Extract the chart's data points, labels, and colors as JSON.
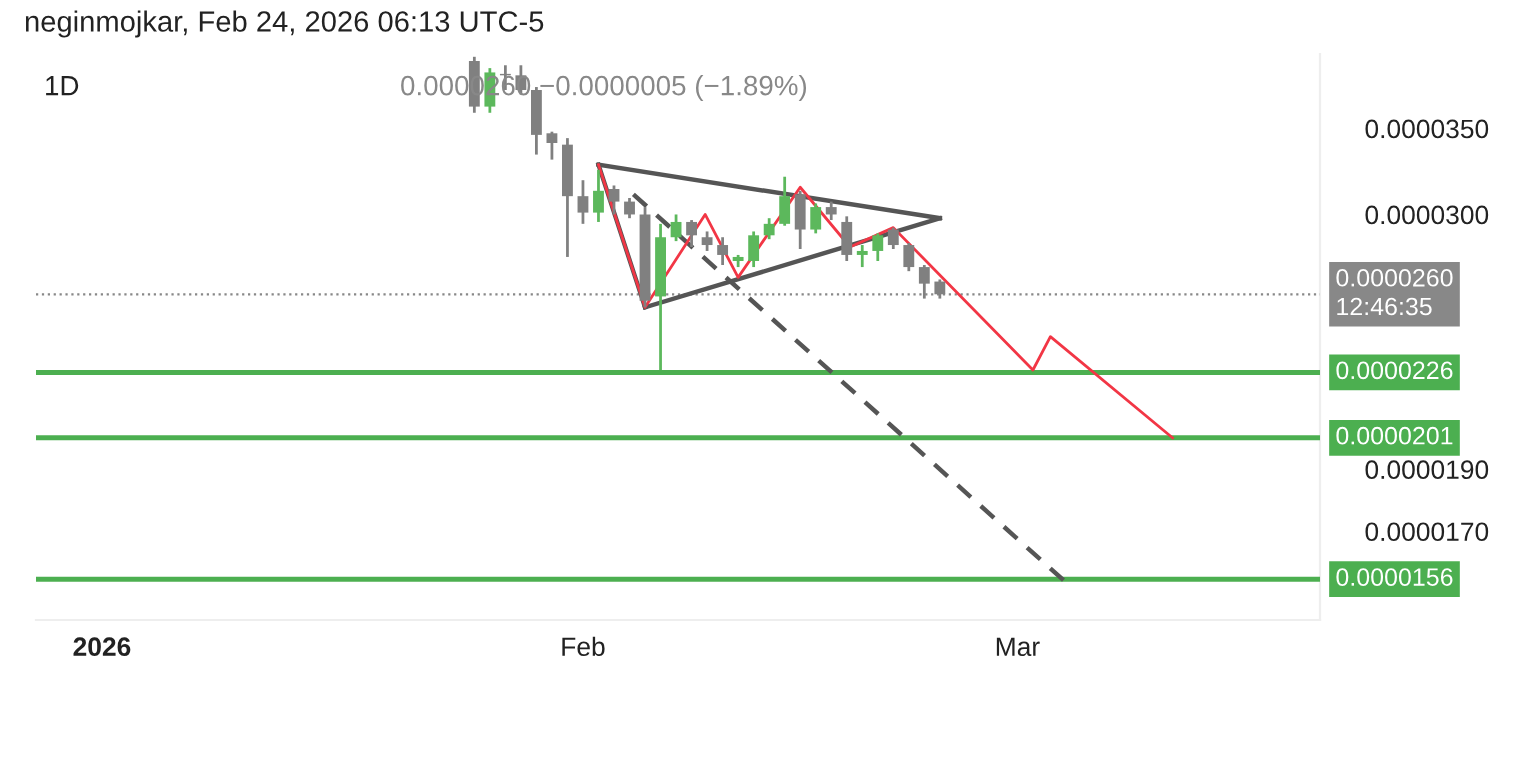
{
  "chart_data": {
    "type": "candlestick",
    "title": "1D",
    "subtitle": "neginmojkar, Feb 24, 2026 06:13 UTC-5",
    "annotations": [
      "0.0000260 −0.0000005 (−1.89%)"
    ],
    "log": true,
    "x": [
      "2026-01-25",
      "2026-01-26",
      "2026-01-27",
      "2026-01-28",
      "2026-01-29",
      "2026-01-30",
      "2026-01-31",
      "2026-02-01",
      "2026-02-02",
      "2026-02-03",
      "2026-02-04",
      "2026-02-05",
      "2026-02-06",
      "2026-02-07",
      "2026-02-08",
      "2026-02-09",
      "2026-02-10",
      "2026-02-11",
      "2026-02-12",
      "2026-02-13",
      "2026-02-14",
      "2026-02-15",
      "2026-02-16",
      "2026-02-17",
      "2026-02-18",
      "2026-02-19",
      "2026-02-20",
      "2026-02-21",
      "2026-02-22",
      "2026-02-23",
      "2026-02-24"
    ],
    "ohlc": [
      [
        3.95e-05,
        3.98e-05,
        3.6e-05,
        3.64e-05
      ],
      [
        3.64e-05,
        3.9e-05,
        3.6e-05,
        3.87e-05
      ],
      [
        3.86e-05,
        3.92e-05,
        3.75e-05,
        3.85e-05
      ],
      [
        3.85e-05,
        3.92e-05,
        3.72e-05,
        3.75e-05
      ],
      [
        3.75e-05,
        3.77e-05,
        3.34e-05,
        3.46e-05
      ],
      [
        3.47e-05,
        3.48e-05,
        3.31e-05,
        3.41e-05
      ],
      [
        3.4e-05,
        3.44e-05,
        2.78e-05,
        3.1e-05
      ],
      [
        3.1e-05,
        3.19e-05,
        2.95e-05,
        3.01e-05
      ],
      [
        3.01e-05,
        3.25e-05,
        2.96e-05,
        3.13e-05
      ],
      [
        3.14e-05,
        3.16e-05,
        3e-05,
        3.07e-05
      ],
      [
        3.07e-05,
        3.09e-05,
        2.98e-05,
        3e-05
      ],
      [
        3e-05,
        3.04e-05,
        2.54e-05,
        2.57e-05
      ],
      [
        2.59e-05,
        2.95e-05,
        2.27e-05,
        2.88e-05
      ],
      [
        2.88e-05,
        3e-05,
        2.86e-05,
        2.96e-05
      ],
      [
        2.96e-05,
        2.97e-05,
        2.83e-05,
        2.89e-05
      ],
      [
        2.88e-05,
        2.91e-05,
        2.81e-05,
        2.84e-05
      ],
      [
        2.84e-05,
        2.88e-05,
        2.74e-05,
        2.79e-05
      ],
      [
        2.76e-05,
        2.79e-05,
        2.73e-05,
        2.78e-05
      ],
      [
        2.76e-05,
        2.91e-05,
        2.73e-05,
        2.89e-05
      ],
      [
        2.89e-05,
        2.98e-05,
        2.87e-05,
        2.95e-05
      ],
      [
        2.95e-05,
        3.21e-05,
        2.94e-05,
        3.1e-05
      ],
      [
        3.11e-05,
        3.13e-05,
        2.82e-05,
        2.92e-05
      ],
      [
        2.92e-05,
        3.06e-05,
        2.9e-05,
        3.04e-05
      ],
      [
        3.04e-05,
        3.07e-05,
        2.97e-05,
        3e-05
      ],
      [
        2.96e-05,
        2.99e-05,
        2.76e-05,
        2.79e-05
      ],
      [
        2.79e-05,
        2.84e-05,
        2.73e-05,
        2.81e-05
      ],
      [
        2.81e-05,
        2.9e-05,
        2.76e-05,
        2.89e-05
      ],
      [
        2.92e-05,
        2.93e-05,
        2.82e-05,
        2.84e-05
      ],
      [
        2.84e-05,
        2.85e-05,
        2.71e-05,
        2.73e-05
      ],
      [
        2.73e-05,
        2.74e-05,
        2.58e-05,
        2.65e-05
      ],
      [
        2.66e-05,
        2.67e-05,
        2.58e-05,
        2.6e-05
      ]
    ],
    "colors": [
      "#808080",
      "#5cb85c",
      "#808080",
      "#808080",
      "#808080",
      "#808080",
      "#808080",
      "#808080",
      "#5cb85c",
      "#808080",
      "#808080",
      "#808080",
      "#5cb85c",
      "#5cb85c",
      "#808080",
      "#808080",
      "#808080",
      "#5cb85c",
      "#5cb85c",
      "#5cb85c",
      "#5cb85c",
      "#808080",
      "#5cb85c",
      "#808080",
      "#808080",
      "#5cb85c",
      "#5cb85c",
      "#808080",
      "#808080",
      "#808080",
      "#808080"
    ],
    "series": [
      {
        "type": "line",
        "color": "#555555",
        "line_style": "solid",
        "x": [
          "2026-02-02",
          "2026-02-24"
        ],
        "values": [
          3.28e-05,
          2.98e-05
        ]
      },
      {
        "type": "line",
        "color": "#555555",
        "line_style": "solid",
        "x": [
          "2026-02-05",
          "2026-02-24"
        ],
        "values": [
          2.54e-05,
          2.98e-05
        ]
      },
      {
        "type": "line",
        "color": "#555555",
        "line_style": "solid",
        "x": [
          "2026-02-02",
          "2026-02-05"
        ],
        "values": [
          3.28e-05,
          2.54e-05
        ]
      },
      {
        "type": "line",
        "color": "#555555",
        "line_style": "dashed",
        "x": [
          "2026-02-04T06:00",
          "2026-03-04T10:00"
        ],
        "values": [
          3.11e-05,
          1.54e-05
        ]
      },
      {
        "type": "line",
        "color": "#f23645",
        "line_style": "solid",
        "x": [
          "2026-02-02",
          "2026-02-05",
          "2026-02-08T21:00",
          "2026-02-11",
          "2026-02-15",
          "2026-02-18T05:00",
          "2026-02-21",
          "2026-03-02",
          "2026-03-03T03:00",
          "2026-03-11"
        ],
        "values": [
          3.28e-05,
          2.54e-05,
          3e-05,
          2.68e-05,
          3.15e-05,
          2.83e-05,
          2.93e-05,
          2.27e-05,
          2.41e-05,
          2.01e-05
        ]
      }
    ],
    "ref_lines": [
      {
        "axis": "y",
        "value": 2.6e-05,
        "label": "0.0000260\n12:46:35",
        "color": "#888888",
        "line_style": "dotted"
      },
      {
        "axis": "y",
        "value": 2.26e-05,
        "label": "0.0000226",
        "color": "#4caf50",
        "line_style": "solid"
      },
      {
        "axis": "y",
        "value": 2.01e-05,
        "label": "0.0000201",
        "color": "#4caf50",
        "line_style": "solid"
      },
      {
        "axis": "y",
        "value": 1.56e-05,
        "label": "0.0000156",
        "color": "#4caf50",
        "line_style": "solid"
      }
    ],
    "xlim": [
      "2025-12-27T18:00",
      "2026-03-20T12:00"
    ],
    "xticks": [
      {
        "value": "2026-01-01",
        "label": "2026"
      },
      {
        "value": "2026-02-01",
        "label": "Feb"
      },
      {
        "value": "2026-03-01",
        "label": "Mar"
      }
    ],
    "ylim": [
      1.45e-05,
      4e-05
    ],
    "yticks": [
      {
        "value": 1.7e-05,
        "label": "0.0000170"
      },
      {
        "value": 1.9e-05,
        "label": "0.0000190"
      },
      {
        "value": 3e-05,
        "label": "0.0000300"
      },
      {
        "value": 3.5e-05,
        "label": "0.0000350"
      }
    ],
    "grid": false,
    "legend": false
  }
}
